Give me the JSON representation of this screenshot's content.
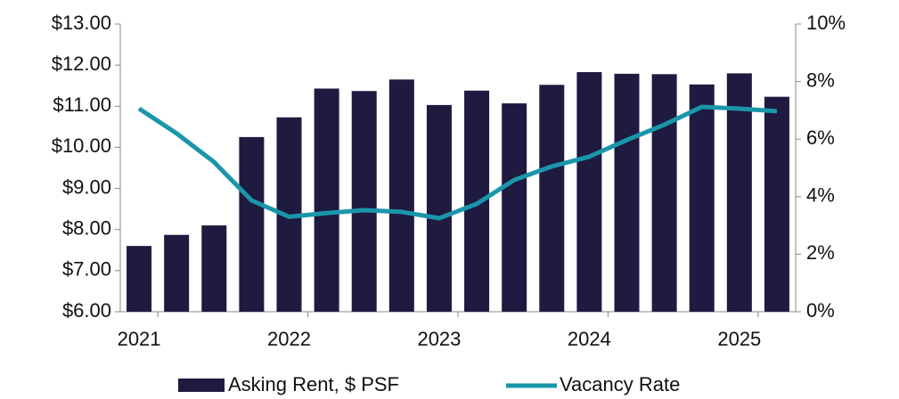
{
  "chart_data": {
    "type": "bar_line",
    "categories": [
      "2021",
      null,
      null,
      null,
      "2022",
      null,
      null,
      null,
      "2023",
      null,
      null,
      null,
      "2024",
      null,
      null,
      null,
      "2025",
      null
    ],
    "series": [
      {
        "name": "Asking Rent, $ PSF",
        "color": "#1e1a40",
        "type": "bar",
        "values": [
          7.6,
          7.87,
          8.1,
          10.25,
          10.73,
          11.43,
          11.37,
          11.65,
          11.03,
          11.38,
          11.07,
          11.52,
          11.83,
          11.79,
          11.78,
          11.53,
          11.8,
          11.23
        ]
      },
      {
        "name": "Vacancy Rate",
        "color": "#1a96aa",
        "type": "line",
        "axis": "y2",
        "values": [
          7.06,
          6.2,
          5.2,
          3.87,
          3.3,
          3.43,
          3.53,
          3.47,
          3.25,
          3.75,
          4.58,
          5.05,
          5.39,
          5.97,
          6.5,
          7.12,
          7.06,
          6.97
        ]
      }
    ],
    "ylim": [
      6,
      13
    ],
    "yticks": [
      {
        "value": 6,
        "label": "$6.00"
      },
      {
        "value": 7,
        "label": "$7.00"
      },
      {
        "value": 8,
        "label": "$8.00"
      },
      {
        "value": 9,
        "label": "$9.00"
      },
      {
        "value": 10,
        "label": "$10.00"
      },
      {
        "value": 11,
        "label": "$11.00"
      },
      {
        "value": 12,
        "label": "$12.00"
      },
      {
        "value": 13,
        "label": "$13.00"
      }
    ],
    "y2lim": [
      0,
      10
    ],
    "y2ticks": [
      {
        "value": 0,
        "label": "0%"
      },
      {
        "value": 2,
        "label": "2%"
      },
      {
        "value": 4,
        "label": "4%"
      },
      {
        "value": 6,
        "label": "6%"
      },
      {
        "value": 8,
        "label": "8%"
      },
      {
        "value": 10,
        "label": "10%"
      }
    ],
    "legend": "bottom"
  }
}
